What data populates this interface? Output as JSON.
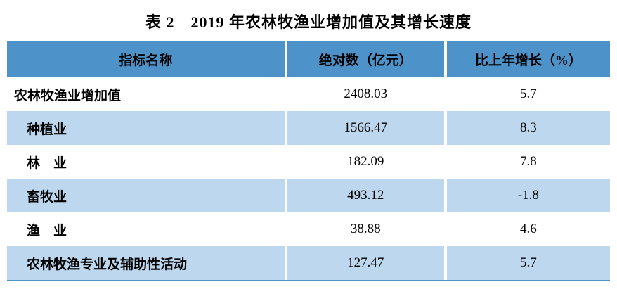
{
  "title": "表 2　2019 年农林牧渔业增加值及其增长速度",
  "table": {
    "headers": {
      "name": "指标名称",
      "value": "绝对数（亿元）",
      "growth": "比上年增长（%）"
    },
    "rows": [
      {
        "name": "农林牧渔业增加值",
        "value": "2408.03",
        "growth": "5.7"
      },
      {
        "name": "种植业",
        "value": "1566.47",
        "growth": "8.3"
      },
      {
        "name": "林　业",
        "value": "182.09",
        "growth": "7.8"
      },
      {
        "name": "畜牧业",
        "value": "493.12",
        "growth": "-1.8"
      },
      {
        "name": "渔　业",
        "value": "38.88",
        "growth": "4.6"
      },
      {
        "name": "农林牧渔专业及辅助性活动",
        "value": "127.47",
        "growth": "5.7"
      }
    ]
  },
  "colors": {
    "header_bg": "#4d93c9",
    "alt_row_bg": "#bdd7ee",
    "row_bg": "#ffffff",
    "text": "#000000"
  }
}
